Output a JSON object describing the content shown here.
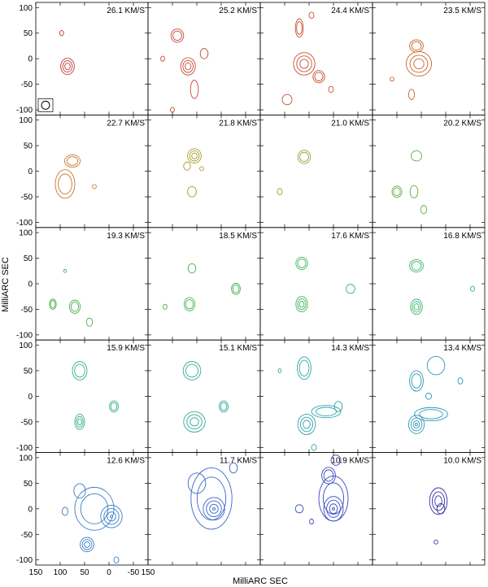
{
  "chart_data": {
    "type": "contour-channel-map",
    "xlabel": "MilliARC SEC",
    "ylabel": "MilliARC SEC",
    "xlim": [
      150,
      -80
    ],
    "ylim": [
      -110,
      110
    ],
    "x_ticks": [
      150,
      100,
      50,
      0,
      -50
    ],
    "y_ticks": [
      100,
      50,
      0,
      -50,
      -100
    ],
    "beam_shown_in_first_panel": true,
    "panels": [
      {
        "label": "26.1 KM/S",
        "color": "#c23a2e",
        "blobs": [
          {
            "x": 85,
            "y": -15,
            "rx": 14,
            "ry": 16,
            "levels": 3
          },
          {
            "x": 97,
            "y": 50,
            "rx": 4,
            "ry": 5,
            "levels": 1
          }
        ]
      },
      {
        "label": "25.2 KM/S",
        "color": "#c8483a",
        "blobs": [
          {
            "x": 68,
            "y": -15,
            "rx": 15,
            "ry": 17,
            "levels": 3
          },
          {
            "x": 90,
            "y": 45,
            "rx": 13,
            "ry": 13,
            "levels": 2
          },
          {
            "x": 35,
            "y": 10,
            "rx": 8,
            "ry": 10,
            "levels": 1
          },
          {
            "x": 55,
            "y": -60,
            "rx": 8,
            "ry": 18,
            "levels": 1
          },
          {
            "x": 120,
            "y": 0,
            "rx": 4,
            "ry": 5,
            "levels": 1
          },
          {
            "x": 100,
            "y": -100,
            "rx": 4,
            "ry": 5,
            "levels": 1
          }
        ]
      },
      {
        "label": "24.4 KM/S",
        "color": "#c8502e",
        "blobs": [
          {
            "x": 60,
            "y": -10,
            "rx": 22,
            "ry": 22,
            "levels": 3
          },
          {
            "x": 30,
            "y": -35,
            "rx": 12,
            "ry": 12,
            "levels": 2
          },
          {
            "x": 70,
            "y": 60,
            "rx": 8,
            "ry": 18,
            "levels": 2
          },
          {
            "x": 45,
            "y": 85,
            "rx": 5,
            "ry": 6,
            "levels": 1
          },
          {
            "x": 95,
            "y": -80,
            "rx": 10,
            "ry": 10,
            "levels": 1
          },
          {
            "x": 5,
            "y": -60,
            "rx": 5,
            "ry": 6,
            "levels": 1
          }
        ]
      },
      {
        "label": "23.5 KM/S",
        "color": "#c86428",
        "blobs": [
          {
            "x": 55,
            "y": -10,
            "rx": 26,
            "ry": 24,
            "levels": 3
          },
          {
            "x": 60,
            "y": 25,
            "rx": 14,
            "ry": 12,
            "levels": 2
          },
          {
            "x": 70,
            "y": -70,
            "rx": 6,
            "ry": 10,
            "levels": 1
          },
          {
            "x": 110,
            "y": -40,
            "rx": 4,
            "ry": 4,
            "levels": 1
          }
        ]
      },
      {
        "label": "22.7 KM/S",
        "color": "#c8782a",
        "blobs": [
          {
            "x": 90,
            "y": -25,
            "rx": 20,
            "ry": 28,
            "levels": 2
          },
          {
            "x": 75,
            "y": 20,
            "rx": 16,
            "ry": 12,
            "levels": 2
          },
          {
            "x": 30,
            "y": -30,
            "rx": 4,
            "ry": 4,
            "levels": 1
          }
        ]
      },
      {
        "label": "21.8 KM/S",
        "color": "#a89a2a",
        "blobs": [
          {
            "x": 55,
            "y": 30,
            "rx": 14,
            "ry": 14,
            "levels": 3
          },
          {
            "x": 60,
            "y": -40,
            "rx": 9,
            "ry": 10,
            "levels": 1
          },
          {
            "x": 70,
            "y": 10,
            "rx": 7,
            "ry": 8,
            "levels": 1
          },
          {
            "x": 40,
            "y": 5,
            "rx": 4,
            "ry": 4,
            "levels": 1
          }
        ]
      },
      {
        "label": "21.0 KM/S",
        "color": "#8aa832",
        "blobs": [
          {
            "x": 60,
            "y": 28,
            "rx": 13,
            "ry": 13,
            "levels": 2
          },
          {
            "x": 110,
            "y": -40,
            "rx": 5,
            "ry": 6,
            "levels": 1
          }
        ]
      },
      {
        "label": "20.2 KM/S",
        "color": "#60b03c",
        "blobs": [
          {
            "x": 60,
            "y": 30,
            "rx": 11,
            "ry": 10,
            "levels": 1
          },
          {
            "x": 100,
            "y": -40,
            "rx": 10,
            "ry": 11,
            "levels": 2
          },
          {
            "x": 65,
            "y": -40,
            "rx": 8,
            "ry": 12,
            "levels": 1
          },
          {
            "x": 45,
            "y": -75,
            "rx": 6,
            "ry": 8,
            "levels": 1
          }
        ]
      },
      {
        "label": "19.3 KM/S",
        "color": "#48b048",
        "blobs": [
          {
            "x": 115,
            "y": -40,
            "rx": 7,
            "ry": 10,
            "levels": 2
          },
          {
            "x": 70,
            "y": -45,
            "rx": 11,
            "ry": 13,
            "levels": 2
          },
          {
            "x": 40,
            "y": -75,
            "rx": 6,
            "ry": 8,
            "levels": 1
          },
          {
            "x": 90,
            "y": 25,
            "rx": 3,
            "ry": 3,
            "levels": 1
          }
        ]
      },
      {
        "label": "18.5 KM/S",
        "color": "#40b450",
        "blobs": [
          {
            "x": 60,
            "y": 30,
            "rx": 8,
            "ry": 9,
            "levels": 1
          },
          {
            "x": 65,
            "y": -40,
            "rx": 11,
            "ry": 13,
            "levels": 2
          },
          {
            "x": -30,
            "y": -10,
            "rx": 9,
            "ry": 11,
            "levels": 2
          },
          {
            "x": 115,
            "y": -45,
            "rx": 4,
            "ry": 5,
            "levels": 1
          }
        ]
      },
      {
        "label": "17.6 KM/S",
        "color": "#3cb45a",
        "blobs": [
          {
            "x": 65,
            "y": 40,
            "rx": 12,
            "ry": 12,
            "levels": 2
          },
          {
            "x": 65,
            "y": -40,
            "rx": 12,
            "ry": 15,
            "levels": 3
          },
          {
            "x": -35,
            "y": -10,
            "rx": 9,
            "ry": 9,
            "levels": 1
          }
        ]
      },
      {
        "label": "16.8 KM/S",
        "color": "#38b468",
        "blobs": [
          {
            "x": 60,
            "y": 35,
            "rx": 14,
            "ry": 12,
            "levels": 2
          },
          {
            "x": 60,
            "y": -45,
            "rx": 12,
            "ry": 15,
            "levels": 3
          },
          {
            "x": -55,
            "y": -10,
            "rx": 4,
            "ry": 5,
            "levels": 1
          }
        ]
      },
      {
        "label": "15.9 KM/S",
        "color": "#34b080",
        "blobs": [
          {
            "x": 60,
            "y": 50,
            "rx": 15,
            "ry": 18,
            "levels": 2
          },
          {
            "x": 60,
            "y": -50,
            "rx": 10,
            "ry": 15,
            "levels": 3
          },
          {
            "x": -10,
            "y": -20,
            "rx": 9,
            "ry": 11,
            "levels": 2
          }
        ]
      },
      {
        "label": "15.1 KM/S",
        "color": "#30ac96",
        "blobs": [
          {
            "x": 60,
            "y": 50,
            "rx": 18,
            "ry": 18,
            "levels": 2
          },
          {
            "x": 55,
            "y": -50,
            "rx": 22,
            "ry": 20,
            "levels": 3
          },
          {
            "x": -5,
            "y": -20,
            "rx": 9,
            "ry": 11,
            "levels": 2
          }
        ]
      },
      {
        "label": "14.3 KM/S",
        "color": "#2ca4aa",
        "blobs": [
          {
            "x": 60,
            "y": 55,
            "rx": 14,
            "ry": 22,
            "levels": 2
          },
          {
            "x": 55,
            "y": -55,
            "rx": 18,
            "ry": 20,
            "levels": 3
          },
          {
            "x": 15,
            "y": -30,
            "rx": 30,
            "ry": 12,
            "levels": 2
          },
          {
            "x": -10,
            "y": -20,
            "rx": 8,
            "ry": 10,
            "levels": 1
          },
          {
            "x": 110,
            "y": 50,
            "rx": 3,
            "ry": 4,
            "levels": 1
          },
          {
            "x": 40,
            "y": -100,
            "rx": 5,
            "ry": 6,
            "levels": 1
          }
        ]
      },
      {
        "label": "13.4 KM/S",
        "color": "#2a96b8",
        "blobs": [
          {
            "x": 60,
            "y": -55,
            "rx": 16,
            "ry": 18,
            "levels": 4
          },
          {
            "x": 30,
            "y": -35,
            "rx": 34,
            "ry": 13,
            "levels": 2
          },
          {
            "x": 60,
            "y": 30,
            "rx": 14,
            "ry": 20,
            "levels": 2
          },
          {
            "x": 20,
            "y": 60,
            "rx": 18,
            "ry": 18,
            "levels": 1
          },
          {
            "x": -30,
            "y": 30,
            "rx": 5,
            "ry": 6,
            "levels": 1
          },
          {
            "x": 35,
            "y": 0,
            "rx": 6,
            "ry": 6,
            "levels": 1
          }
        ]
      },
      {
        "label": "12.6 KM/S",
        "color": "#3a7ec6",
        "blobs": [
          {
            "x": -5,
            "y": -15,
            "rx": 22,
            "ry": 22,
            "levels": 4
          },
          {
            "x": 30,
            "y": 0,
            "rx": 40,
            "ry": 42,
            "levels": 2
          },
          {
            "x": 45,
            "y": -70,
            "rx": 14,
            "ry": 14,
            "levels": 3
          },
          {
            "x": 60,
            "y": 35,
            "rx": 12,
            "ry": 14,
            "levels": 1
          },
          {
            "x": 90,
            "y": -5,
            "rx": 6,
            "ry": 8,
            "levels": 1
          },
          {
            "x": -15,
            "y": -100,
            "rx": 5,
            "ry": 6,
            "levels": 1
          }
        ]
      },
      {
        "label": "11.7 KM/S",
        "color": "#3a66c8",
        "blobs": [
          {
            "x": 15,
            "y": 0,
            "rx": 22,
            "ry": 22,
            "levels": 4
          },
          {
            "x": 20,
            "y": 20,
            "rx": 42,
            "ry": 60,
            "levels": 2
          },
          {
            "x": 50,
            "y": 50,
            "rx": 18,
            "ry": 20,
            "levels": 1
          },
          {
            "x": -25,
            "y": 80,
            "rx": 8,
            "ry": 10,
            "levels": 1
          }
        ]
      },
      {
        "label": "10.9 KM/S",
        "color": "#3848c0",
        "blobs": [
          {
            "x": 0,
            "y": 0,
            "rx": 20,
            "ry": 24,
            "levels": 4
          },
          {
            "x": 0,
            "y": 20,
            "rx": 30,
            "ry": 44,
            "levels": 2
          },
          {
            "x": 10,
            "y": 65,
            "rx": 14,
            "ry": 16,
            "levels": 2
          },
          {
            "x": -5,
            "y": 95,
            "rx": 10,
            "ry": 10,
            "levels": 1
          },
          {
            "x": 70,
            "y": 0,
            "rx": 8,
            "ry": 8,
            "levels": 1
          },
          {
            "x": 45,
            "y": -25,
            "rx": 4,
            "ry": 5,
            "levels": 1
          }
        ]
      },
      {
        "label": "10.0 KM/S",
        "color": "#3a2ea8",
        "blobs": [
          {
            "x": 15,
            "y": 15,
            "rx": 18,
            "ry": 26,
            "levels": 3
          },
          {
            "x": 10,
            "y": 0,
            "rx": 8,
            "ry": 10,
            "levels": 1
          },
          {
            "x": 20,
            "y": -65,
            "rx": 4,
            "ry": 4,
            "levels": 1
          }
        ]
      }
    ]
  }
}
